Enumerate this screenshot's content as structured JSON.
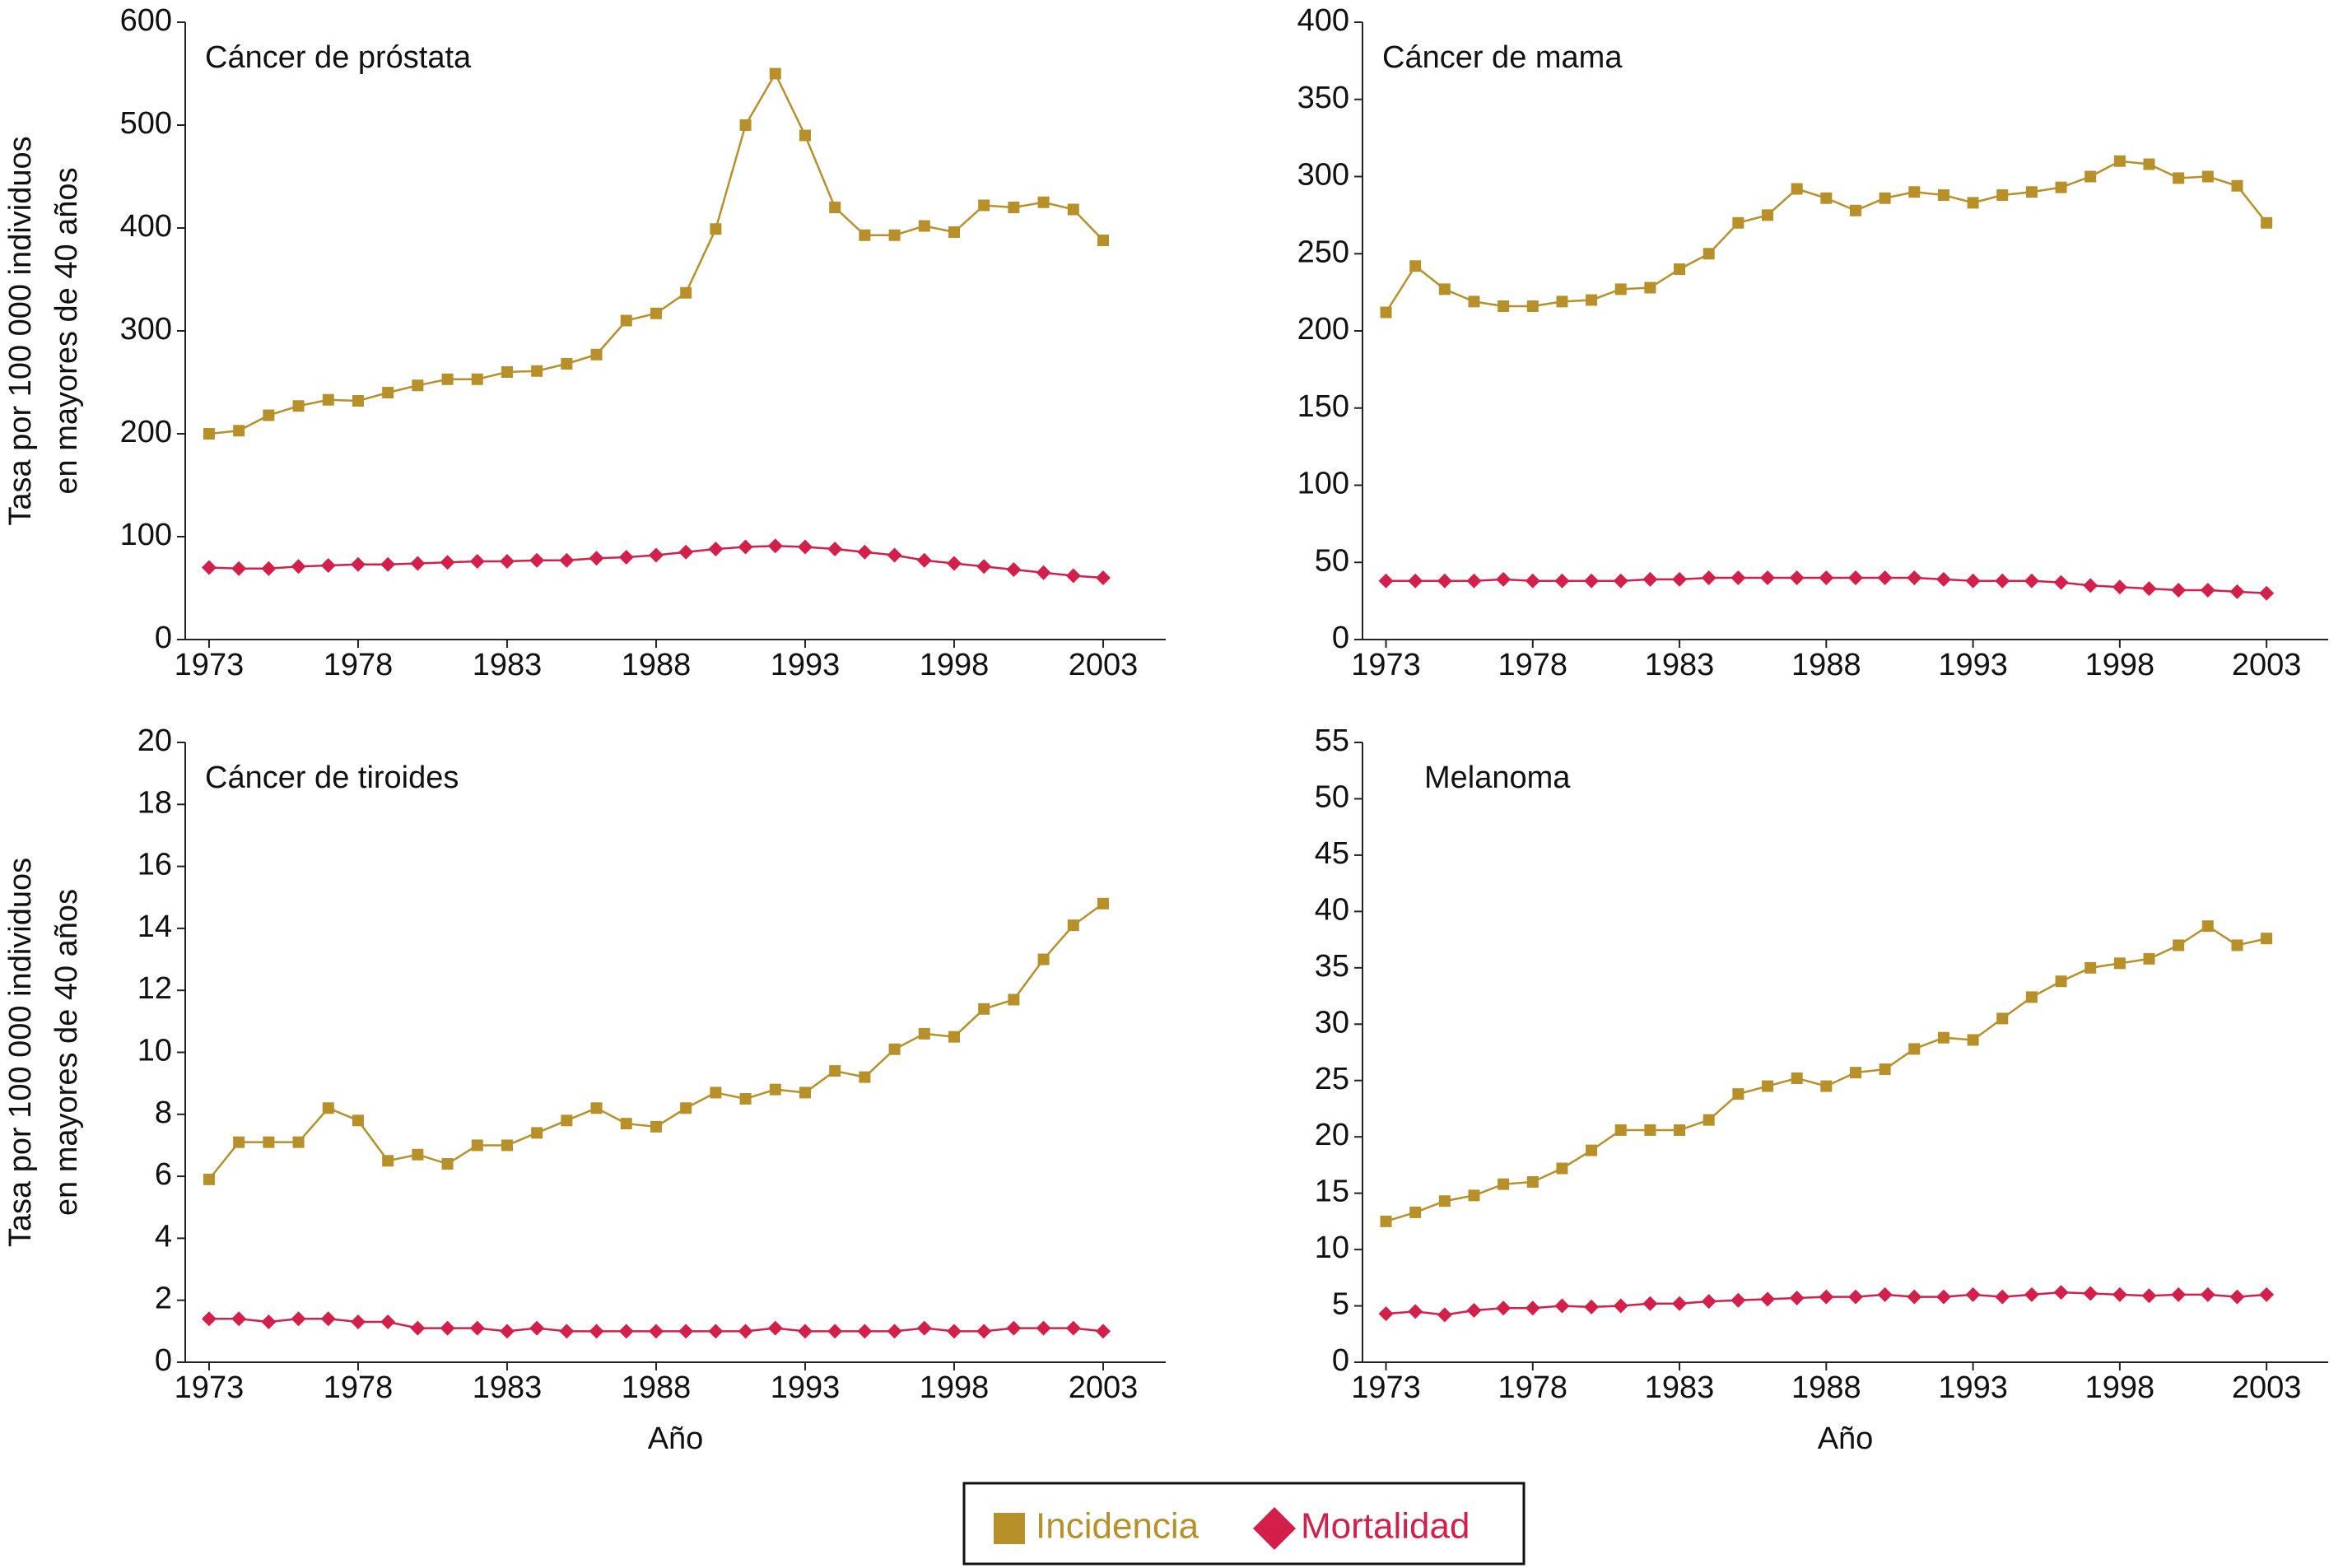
{
  "chart_data": [
    {
      "type": "line",
      "title": "Cáncer de próstata",
      "ylabel": [
        "Tasa por 100 000 individuos",
        "en mayores de 40 años"
      ],
      "x": [
        1973,
        1974,
        1975,
        1976,
        1977,
        1978,
        1979,
        1980,
        1981,
        1982,
        1983,
        1984,
        1985,
        1986,
        1987,
        1988,
        1989,
        1990,
        1991,
        1992,
        1993,
        1994,
        1995,
        1996,
        1997,
        1998,
        1999,
        2000,
        2001,
        2002,
        2003
      ],
      "xlim": [
        1972.2,
        2005.1
      ],
      "xticks": [
        1973,
        1978,
        1983,
        1988,
        1993,
        1998,
        2003
      ],
      "ylim": [
        0,
        600
      ],
      "yticks": [
        0,
        100,
        200,
        300,
        400,
        500,
        600
      ],
      "series": [
        {
          "name": "Incidencia",
          "color": "#b8902a",
          "values": [
            200,
            203,
            218,
            227,
            233,
            232,
            240,
            247,
            253,
            253,
            260,
            261,
            268,
            277,
            310,
            317,
            337,
            399,
            500,
            550,
            490,
            420,
            393,
            393,
            402,
            396,
            422,
            420,
            425,
            418,
            388
          ]
        },
        {
          "name": "Mortalidad",
          "color": "#d2204a",
          "values": [
            70,
            69,
            69,
            71,
            72,
            73,
            73,
            74,
            75,
            76,
            76,
            77,
            77,
            79,
            80,
            82,
            85,
            88,
            90,
            91,
            90,
            88,
            85,
            82,
            77,
            74,
            71,
            68,
            65,
            62,
            60
          ]
        }
      ]
    },
    {
      "type": "line",
      "title": "Cáncer de mama",
      "x": [
        1973,
        1974,
        1975,
        1976,
        1977,
        1978,
        1979,
        1980,
        1981,
        1982,
        1983,
        1984,
        1985,
        1986,
        1987,
        1988,
        1989,
        1990,
        1991,
        1992,
        1993,
        1994,
        1995,
        1996,
        1997,
        1998,
        1999,
        2000,
        2001,
        2002,
        2003
      ],
      "xlim": [
        1972.2,
        2005.1
      ],
      "xticks": [
        1973,
        1978,
        1983,
        1988,
        1993,
        1998,
        2003
      ],
      "ylim": [
        0,
        400
      ],
      "yticks": [
        0,
        50,
        100,
        150,
        200,
        250,
        300,
        350,
        400
      ],
      "series": [
        {
          "name": "Incidencia",
          "color": "#b8902a",
          "values": [
            212,
            242,
            227,
            219,
            216,
            216,
            219,
            220,
            227,
            228,
            240,
            250,
            270,
            275,
            292,
            286,
            278,
            286,
            290,
            288,
            283,
            288,
            290,
            293,
            300,
            310,
            308,
            299,
            300,
            294,
            270
          ]
        },
        {
          "name": "Mortalidad",
          "color": "#d2204a",
          "values": [
            38,
            38,
            38,
            38,
            39,
            38,
            38,
            38,
            38,
            39,
            39,
            40,
            40,
            40,
            40,
            40,
            40,
            40,
            40,
            39,
            38,
            38,
            38,
            37,
            35,
            34,
            33,
            32,
            32,
            31,
            30
          ]
        }
      ]
    },
    {
      "type": "line",
      "title": "Cáncer de tiroides",
      "ylabel": [
        "Tasa por 100 000 individuos",
        "en mayores de 40 años"
      ],
      "xlabel": "Año",
      "x": [
        1973,
        1974,
        1975,
        1976,
        1977,
        1978,
        1979,
        1980,
        1981,
        1982,
        1983,
        1984,
        1985,
        1986,
        1987,
        1988,
        1989,
        1990,
        1991,
        1992,
        1993,
        1994,
        1995,
        1996,
        1997,
        1998,
        1999,
        2000,
        2001,
        2002,
        2003
      ],
      "xlim": [
        1972.2,
        2005.1
      ],
      "xticks": [
        1973,
        1978,
        1983,
        1988,
        1993,
        1998,
        2003
      ],
      "ylim": [
        0,
        20
      ],
      "yticks": [
        0,
        2,
        4,
        6,
        8,
        10,
        12,
        14,
        16,
        18,
        20
      ],
      "series": [
        {
          "name": "Incidencia",
          "color": "#b8902a",
          "values": [
            5.9,
            7.1,
            7.1,
            7.1,
            8.2,
            7.8,
            6.5,
            6.7,
            6.4,
            7.0,
            7.0,
            7.4,
            7.8,
            8.2,
            7.7,
            7.6,
            8.2,
            8.7,
            8.5,
            8.8,
            8.7,
            9.4,
            9.2,
            10.1,
            10.6,
            10.5,
            11.4,
            11.7,
            13.0,
            14.1,
            14.8
          ]
        },
        {
          "name": "Mortalidad",
          "color": "#d2204a",
          "values": [
            1.4,
            1.4,
            1.3,
            1.4,
            1.4,
            1.3,
            1.3,
            1.1,
            1.1,
            1.1,
            1.0,
            1.1,
            1.0,
            1.0,
            1.0,
            1.0,
            1.0,
            1.0,
            1.0,
            1.1,
            1.0,
            1.0,
            1.0,
            1.0,
            1.1,
            1.0,
            1.0,
            1.1,
            1.1,
            1.1,
            1.0
          ]
        }
      ]
    },
    {
      "type": "line",
      "title": "Melanoma",
      "xlabel": "Año",
      "x": [
        1973,
        1974,
        1975,
        1976,
        1977,
        1978,
        1979,
        1980,
        1981,
        1982,
        1983,
        1984,
        1985,
        1986,
        1987,
        1988,
        1989,
        1990,
        1991,
        1992,
        1993,
        1994,
        1995,
        1996,
        1997,
        1998,
        1999,
        2000,
        2001,
        2002,
        2003
      ],
      "xlim": [
        1972.2,
        2005.1
      ],
      "xticks": [
        1973,
        1978,
        1983,
        1988,
        1993,
        1998,
        2003
      ],
      "ylim": [
        0,
        55
      ],
      "yticks": [
        0,
        5,
        10,
        15,
        20,
        25,
        30,
        35,
        40,
        45,
        50,
        55
      ],
      "series": [
        {
          "name": "Incidencia",
          "color": "#b8902a",
          "values": [
            12.5,
            13.3,
            14.3,
            14.8,
            15.8,
            16.0,
            17.2,
            18.8,
            20.6,
            20.6,
            20.6,
            21.5,
            23.8,
            24.5,
            25.2,
            24.5,
            25.7,
            26.0,
            27.8,
            28.8,
            28.6,
            30.5,
            32.4,
            33.8,
            35.0,
            35.4,
            35.8,
            37.0,
            38.7,
            37.0,
            37.6
          ]
        },
        {
          "name": "Mortalidad",
          "color": "#d2204a",
          "values": [
            4.3,
            4.5,
            4.2,
            4.6,
            4.8,
            4.8,
            5.0,
            4.9,
            5.0,
            5.2,
            5.2,
            5.4,
            5.5,
            5.6,
            5.7,
            5.8,
            5.8,
            6.0,
            5.8,
            5.8,
            6.0,
            5.8,
            6.0,
            6.2,
            6.1,
            6.0,
            5.9,
            6.0,
            6.0,
            5.8,
            6.0
          ]
        }
      ]
    }
  ]
}
